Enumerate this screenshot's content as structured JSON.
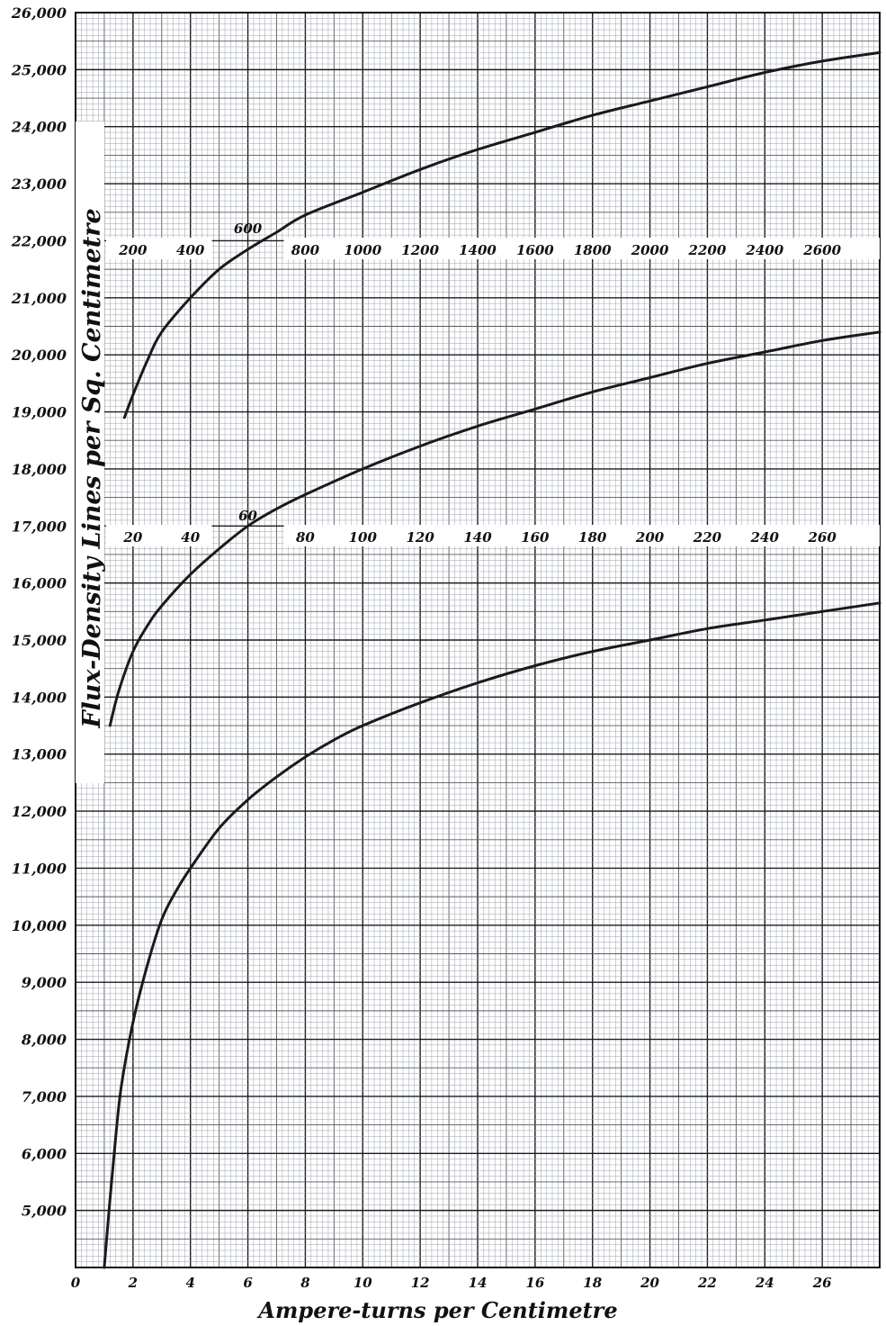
{
  "chart_data": {
    "type": "line",
    "title": "",
    "ylabel": "Flux-Density Lines per Sq. Centimetre",
    "xlabel": "Ampere-turns per Centimetre",
    "ylim": [
      4000,
      26000
    ],
    "y_tick_labels": [
      "5,000",
      "6,000",
      "7,000",
      "8,000",
      "9,000",
      "10,000",
      "11,000",
      "12,000",
      "13,000",
      "14,000",
      "15,000",
      "16,000",
      "17,000",
      "18,000",
      "19,000",
      "20,000",
      "21,000",
      "22,000",
      "23,000",
      "24,000",
      "25,000",
      "26,000"
    ],
    "y_tick_values": [
      5000,
      6000,
      7000,
      8000,
      9000,
      10000,
      11000,
      12000,
      13000,
      14000,
      15000,
      16000,
      17000,
      18000,
      19000,
      20000,
      21000,
      22000,
      23000,
      24000,
      25000,
      26000
    ],
    "grid": true,
    "x_scales": [
      {
        "name": "bottom",
        "xlim": [
          0,
          28
        ],
        "tick_labels": [
          "0",
          "2",
          "4",
          "6",
          "8",
          "10",
          "12",
          "14",
          "16",
          "18",
          "20",
          "22",
          "24",
          "26"
        ],
        "tick_values": [
          0,
          2,
          4,
          6,
          8,
          10,
          12,
          14,
          16,
          18,
          20,
          22,
          24,
          26
        ]
      },
      {
        "name": "middle",
        "xlim": [
          0,
          280
        ],
        "tick_labels": [
          "20",
          "40",
          "60",
          "80",
          "100",
          "120",
          "140",
          "160",
          "180",
          "200",
          "220",
          "240",
          "260"
        ],
        "tick_values": [
          20,
          40,
          60,
          80,
          100,
          120,
          140,
          160,
          180,
          200,
          220,
          240,
          260
        ]
      },
      {
        "name": "top",
        "xlim": [
          0,
          2800
        ],
        "tick_labels": [
          "200",
          "400",
          "600",
          "800",
          "1000",
          "1200",
          "1400",
          "1600",
          "1800",
          "2000",
          "2200",
          "2400",
          "2600"
        ],
        "tick_values": [
          200,
          400,
          600,
          800,
          1000,
          1200,
          1400,
          1600,
          1800,
          2000,
          2200,
          2400,
          2600
        ]
      }
    ],
    "series": [
      {
        "scale": "bottom",
        "x": [
          1.0,
          1.2,
          1.4,
          1.6,
          2.0,
          2.5,
          3.0,
          3.5,
          4.0,
          5.0,
          6.0,
          7.0,
          8.0,
          9.0,
          10.0,
          12.0,
          14.0,
          16.0,
          18.0,
          20.0,
          22.0,
          24.0,
          26.0,
          28.0
        ],
        "y": [
          4000,
          5200,
          6300,
          7200,
          8300,
          9300,
          10100,
          10600,
          11000,
          11700,
          12200,
          12600,
          12950,
          13250,
          13500,
          13900,
          14250,
          14550,
          14800,
          15000,
          15200,
          15350,
          15500,
          15650
        ]
      },
      {
        "scale": "middle",
        "x": [
          12,
          15,
          20,
          25,
          30,
          40,
          50,
          60,
          70,
          80,
          100,
          120,
          140,
          160,
          180,
          200,
          220,
          240,
          260,
          280
        ],
        "y": [
          13500,
          14100,
          14800,
          15250,
          15600,
          16150,
          16600,
          17000,
          17300,
          17550,
          18000,
          18400,
          18750,
          19050,
          19350,
          19600,
          19850,
          20050,
          20250,
          20400
        ]
      },
      {
        "scale": "top",
        "x": [
          170,
          200,
          250,
          300,
          400,
          500,
          600,
          700,
          800,
          1000,
          1200,
          1400,
          1600,
          1800,
          2000,
          2200,
          2400,
          2600,
          2800
        ],
        "y": [
          18900,
          19300,
          19900,
          20400,
          21000,
          21500,
          21850,
          22150,
          22450,
          22850,
          23250,
          23600,
          23900,
          24200,
          24450,
          24700,
          24950,
          25150,
          25300
        ]
      }
    ]
  }
}
